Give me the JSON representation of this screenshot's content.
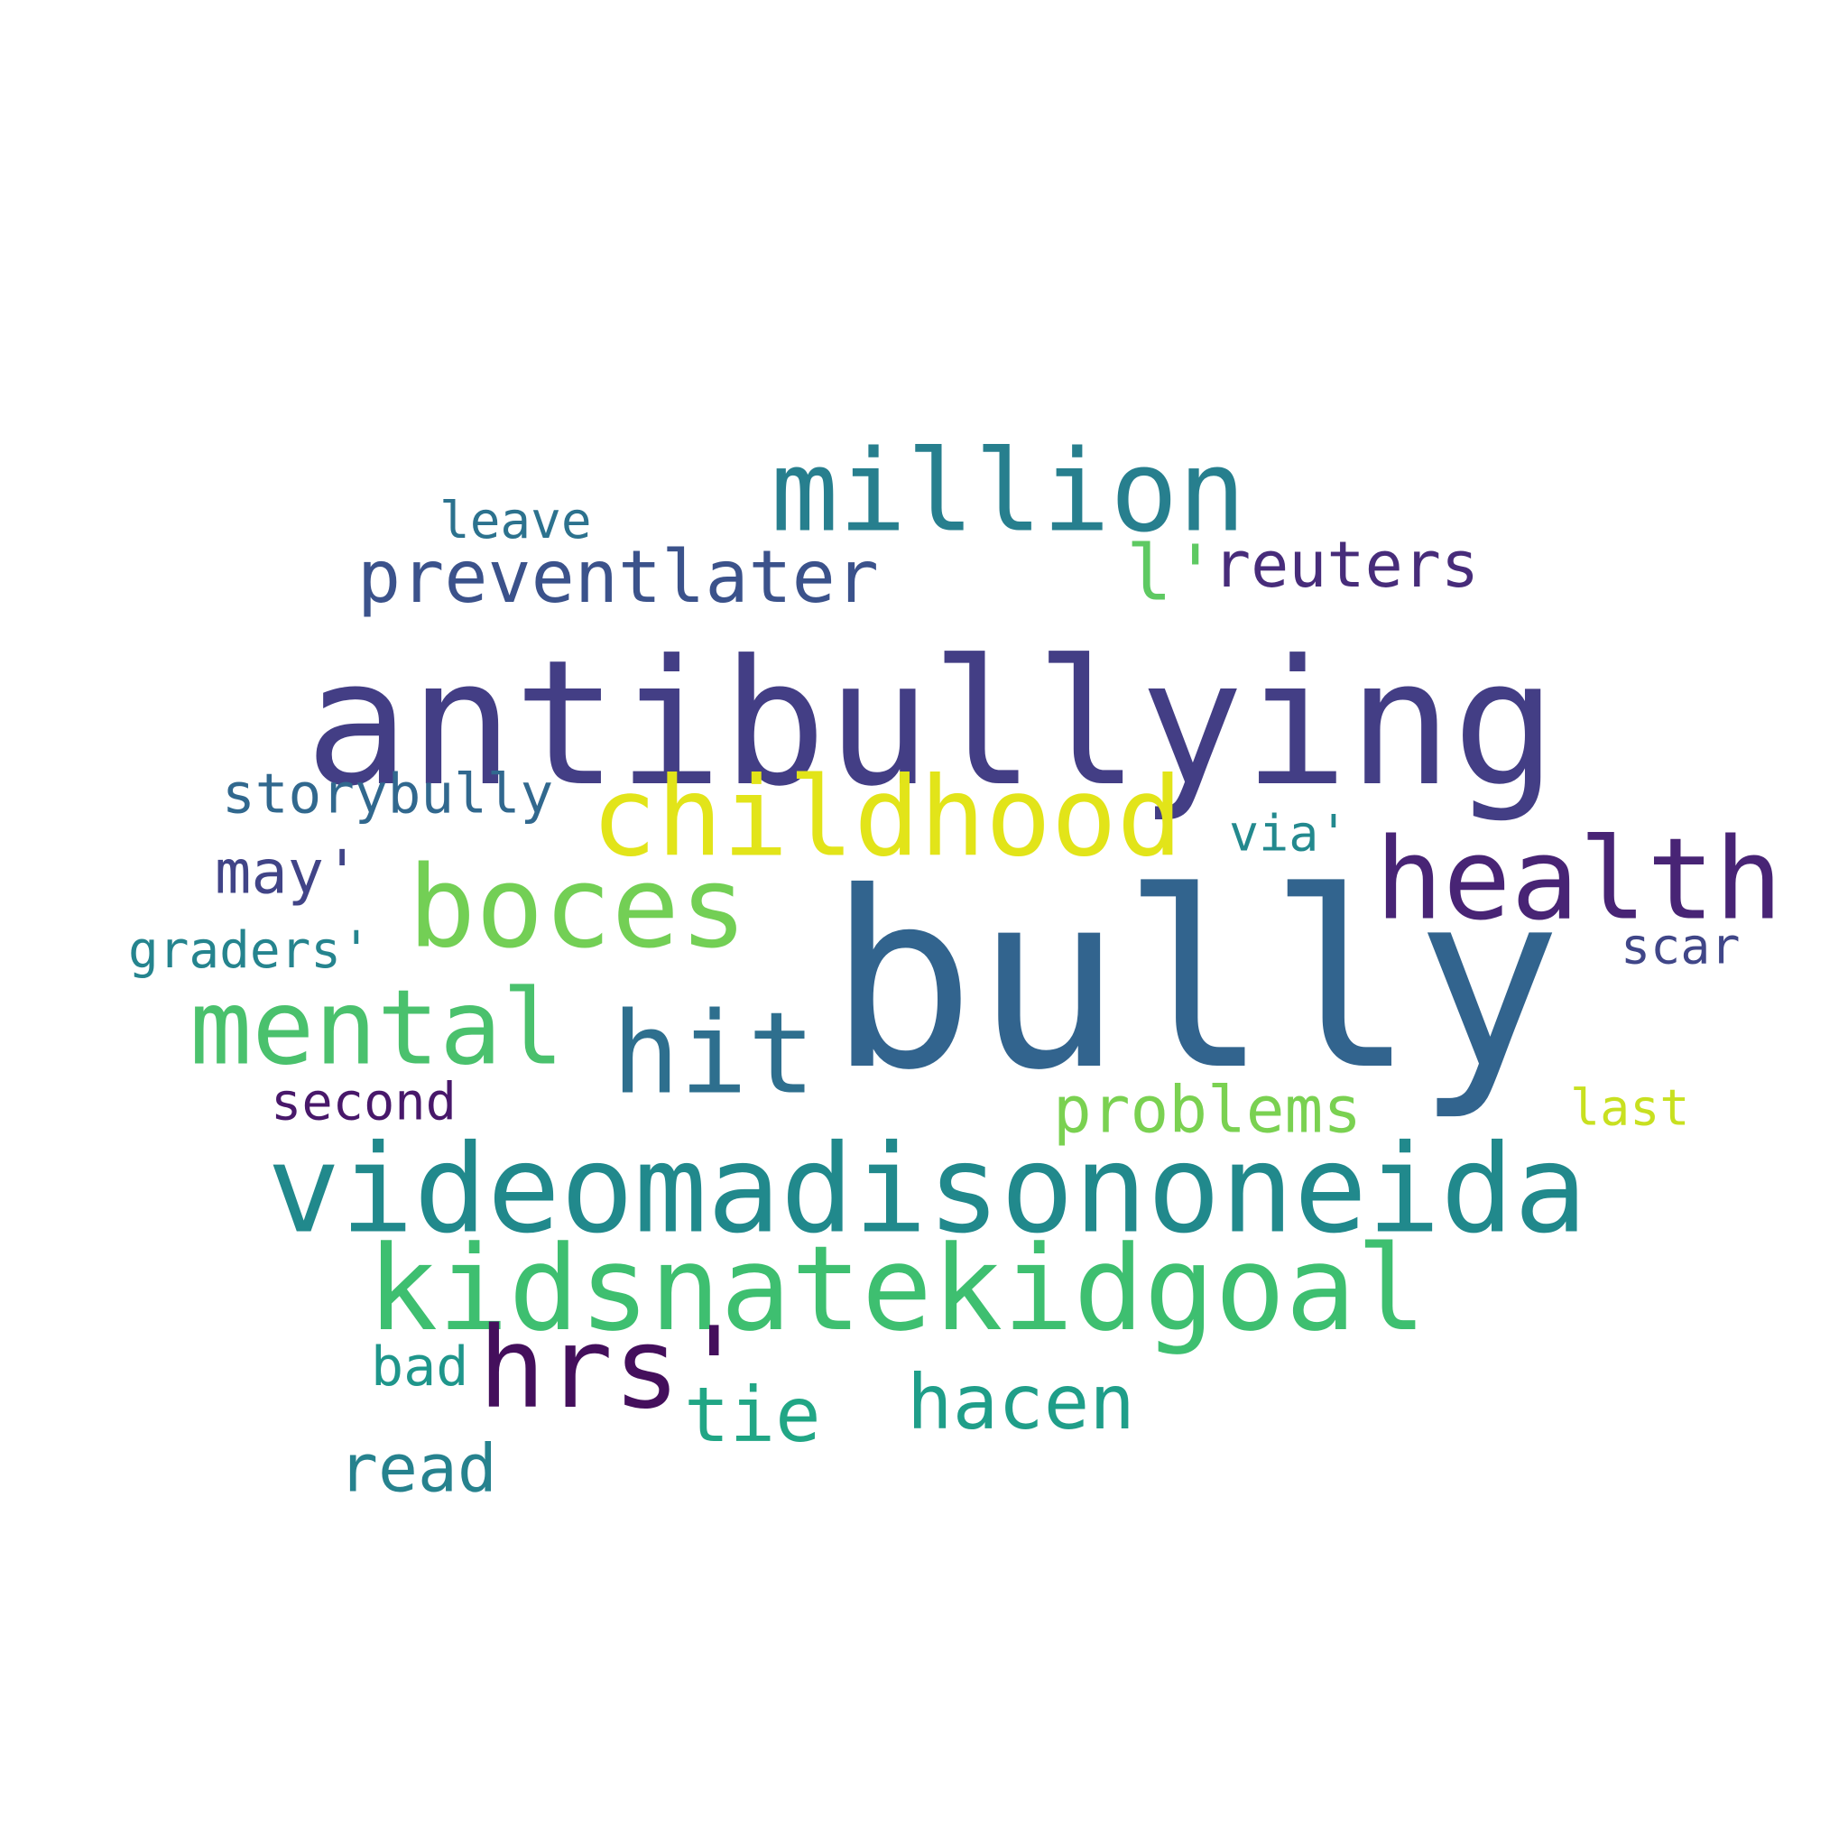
{
  "words": [
    {
      "text": "bully",
      "color": "#32648e"
    },
    {
      "text": "antibullying",
      "color": "#433e85"
    },
    {
      "text": "videomadisononeida",
      "color": "#21898c"
    },
    {
      "text": "kidsnatekidgoal",
      "color": "#3ebf70"
    },
    {
      "text": "childhood",
      "color": "#e2e419"
    },
    {
      "text": "million",
      "color": "#277f8e"
    },
    {
      "text": "boces",
      "color": "#73cf55"
    },
    {
      "text": "health",
      "color": "#482475"
    },
    {
      "text": "mental",
      "color": "#4ac16d"
    },
    {
      "text": "hit",
      "color": "#2e6f8e"
    },
    {
      "text": "hrs'",
      "color": "#440f5c"
    },
    {
      "text": "preventlater",
      "color": "#3b528b"
    },
    {
      "text": "l'",
      "color": "#5ec962"
    },
    {
      "text": "reuters",
      "color": "#472c7a"
    },
    {
      "text": "problems",
      "color": "#7ad151"
    },
    {
      "text": "hacen",
      "color": "#1f9e89"
    },
    {
      "text": "tie",
      "color": "#21a685"
    },
    {
      "text": "read",
      "color": "#26828e"
    },
    {
      "text": "storybully",
      "color": "#31688e"
    },
    {
      "text": "may'",
      "color": "#414487"
    },
    {
      "text": "graders'",
      "color": "#25848e"
    },
    {
      "text": "via'",
      "color": "#23898e"
    },
    {
      "text": "scar",
      "color": "#404688"
    },
    {
      "text": "second",
      "color": "#48186a"
    },
    {
      "text": "last",
      "color": "#c8e020"
    },
    {
      "text": "bad",
      "color": "#1f968b"
    },
    {
      "text": "leave",
      "color": "#2c728e"
    }
  ]
}
